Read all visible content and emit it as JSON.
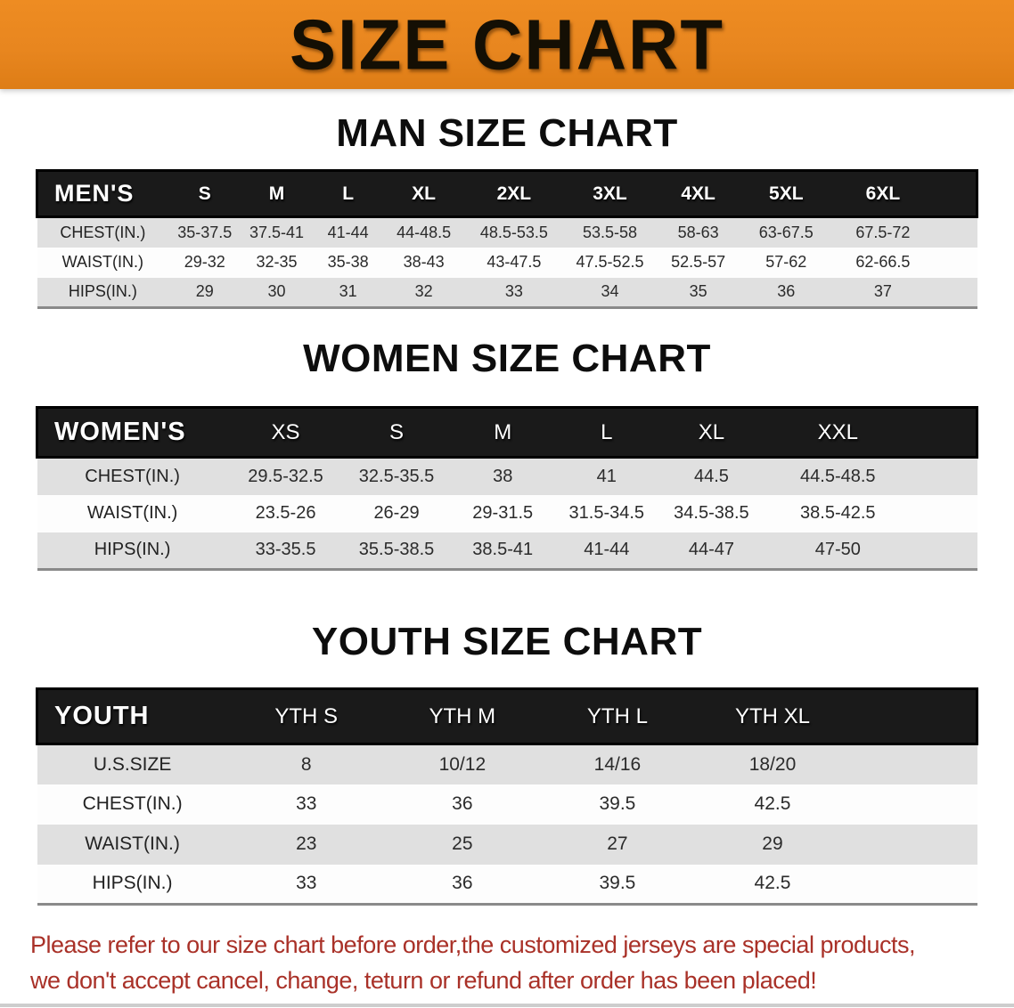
{
  "banner": {
    "title": "SIZE CHART",
    "bg_color": "#E8861F"
  },
  "headings": {
    "men": "MAN SIZE CHART",
    "women": "WOMEN SIZE CHART",
    "youth": "YOUTH SIZE CHART"
  },
  "tables": {
    "men": {
      "group_label": "MEN'S",
      "columns": [
        "S",
        "M",
        "L",
        "XL",
        "2XL",
        "3XL",
        "4XL",
        "5XL",
        "6XL"
      ],
      "rows": [
        {
          "label": "CHEST(IN.)",
          "values": [
            "35-37.5",
            "37.5-41",
            "41-44",
            "44-48.5",
            "48.5-53.5",
            "53.5-58",
            "58-63",
            "63-67.5",
            "67.5-72"
          ]
        },
        {
          "label": "WAIST(IN.)",
          "values": [
            "29-32",
            "32-35",
            "35-38",
            "38-43",
            "43-47.5",
            "47.5-52.5",
            "52.5-57",
            "57-62",
            "62-66.5"
          ]
        },
        {
          "label": "HIPS(IN.)",
          "values": [
            "29",
            "30",
            "31",
            "32",
            "33",
            "34",
            "35",
            "36",
            "37"
          ]
        }
      ]
    },
    "women": {
      "group_label": "WOMEN'S",
      "columns": [
        "XS",
        "S",
        "M",
        "L",
        "XL",
        "XXL"
      ],
      "rows": [
        {
          "label": "CHEST(IN.)",
          "values": [
            "29.5-32.5",
            "32.5-35.5",
            "38",
            "41",
            "44.5",
            "44.5-48.5"
          ]
        },
        {
          "label": "WAIST(IN.)",
          "values": [
            "23.5-26",
            "26-29",
            "29-31.5",
            "31.5-34.5",
            "34.5-38.5",
            "38.5-42.5"
          ]
        },
        {
          "label": "HIPS(IN.)",
          "values": [
            "33-35.5",
            "35.5-38.5",
            "38.5-41",
            "41-44",
            "44-47",
            "47-50"
          ]
        }
      ]
    },
    "youth": {
      "group_label": "YOUTH",
      "columns": [
        "YTH S",
        "YTH M",
        "YTH L",
        "YTH XL"
      ],
      "rows": [
        {
          "label": "U.S.SIZE",
          "values": [
            "8",
            "10/12",
            "14/16",
            "18/20"
          ]
        },
        {
          "label": "CHEST(IN.)",
          "values": [
            "33",
            "36",
            "39.5",
            "42.5"
          ]
        },
        {
          "label": "WAIST(IN.)",
          "values": [
            "23",
            "25",
            "27",
            "29"
          ]
        },
        {
          "label": "HIPS(IN.)",
          "values": [
            "33",
            "36",
            "39.5",
            "42.5"
          ]
        }
      ]
    }
  },
  "footer": {
    "line1": "Please refer to our size chart before order,the customized jerseys are special products,",
    "line2": "we don't accept cancel, change, teturn or refund after order has been placed!",
    "text_color": "#A93128"
  }
}
